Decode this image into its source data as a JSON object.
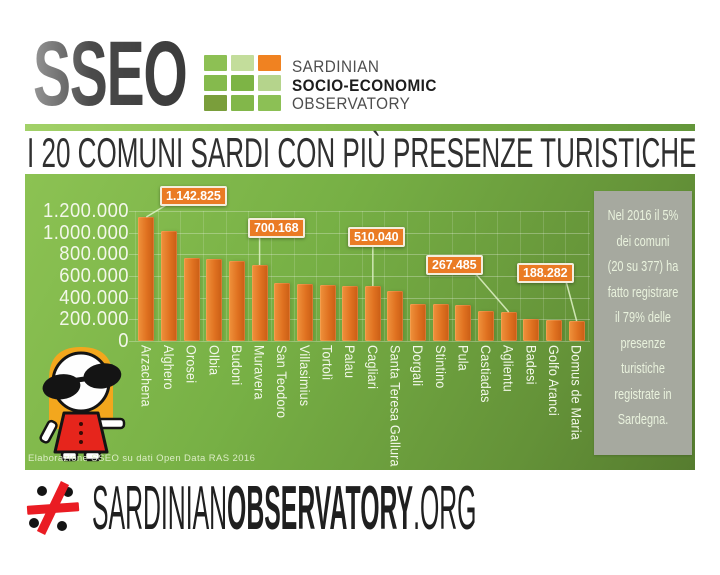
{
  "logo": {
    "brand": "SSEO",
    "line1": "SARDINIAN",
    "line2": "SOCIO-ECONOMIC",
    "line3": "OBSERVATORY",
    "grid_colors": [
      "#8dc054",
      "#c3dd9b",
      "#f08221",
      "#85ba4d",
      "#7db445",
      "#b5d48c",
      "#7a9e3b",
      "#82b74a",
      "#8cc055"
    ]
  },
  "title": {
    "text": "I 20 COMUNI SARDI CON PIÙ PRESENZE TURISTICHE"
  },
  "chart_data": {
    "type": "bar",
    "title": "I 20 comuni sardi con più presenze turistiche",
    "xlabel": "",
    "ylabel": "",
    "ylim": [
      0,
      1200000
    ],
    "grid": true,
    "bar_color": "#df7120",
    "background_color": "#77b045",
    "y_ticks": [
      "1.200.000",
      "1.000.000",
      "800.000",
      "600.000",
      "400.000",
      "200.000",
      "0"
    ],
    "categories": [
      "Arzachena",
      "Alghero",
      "Orosei",
      "Olbia",
      "Budoni",
      "Muravera",
      "San Teodoro",
      "Villasimius",
      "Tortolì",
      "Palau",
      "Cagliari",
      "Santa Teresa Gallura",
      "Dorgali",
      "Stintino",
      "Pula",
      "Castiadas",
      "Aglientu",
      "Badesi",
      "Golfo Aranci",
      "Domus de Maria"
    ],
    "values": [
      1142825,
      1015000,
      762000,
      753000,
      735000,
      700168,
      531000,
      528000,
      515000,
      512000,
      510040,
      460000,
      345000,
      339000,
      330000,
      275000,
      267485,
      205000,
      196000,
      188282
    ],
    "callouts": [
      {
        "label": "1.142.825",
        "index": 0
      },
      {
        "label": "700.168",
        "index": 5
      },
      {
        "label": "510.040",
        "index": 10
      },
      {
        "label": "267.485",
        "index": 16
      },
      {
        "label": "188.282",
        "index": 19
      }
    ]
  },
  "note": {
    "text": "Nel 2016 il 5% dei comuni (20 su 377) ha fatto registrare il 79% delle presenze turistiche registrate in Sardegna."
  },
  "credit": {
    "text": "Elaborazione SSEO su dati Open Data RAS 2016"
  },
  "footer": {
    "part1": "SARDINIAN",
    "part2": "OBSERVATORY",
    "part3": ".ORG"
  }
}
